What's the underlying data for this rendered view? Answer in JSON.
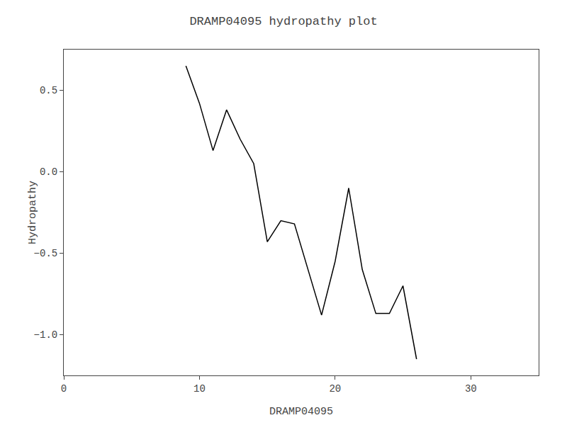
{
  "chart_data": {
    "type": "line",
    "title": "DRAMP04095 hydropathy plot",
    "xlabel": "DRAMP04095",
    "ylabel": "Hydropathy",
    "x": [
      9,
      10,
      11,
      12,
      13,
      14,
      15,
      16,
      17,
      18,
      19,
      20,
      21,
      22,
      23,
      24,
      25,
      26
    ],
    "values": [
      0.65,
      0.42,
      0.13,
      0.38,
      0.2,
      0.05,
      -0.43,
      -0.3,
      -0.32,
      -0.6,
      -0.88,
      -0.55,
      -0.1,
      -0.6,
      -0.87,
      -0.87,
      -0.7,
      -1.15
    ],
    "color": "#000000",
    "xlim": [
      0,
      35
    ],
    "ylim": [
      -1.25,
      0.75
    ],
    "xticks": [
      0,
      10,
      20,
      30
    ],
    "yticks": [
      {
        "value": -1.0,
        "label": "−1.0"
      },
      {
        "value": -0.5,
        "label": "−0.5"
      },
      {
        "value": 0.0,
        "label": "0.0"
      },
      {
        "value": 0.5,
        "label": "0.5"
      }
    ],
    "grid": false
  }
}
